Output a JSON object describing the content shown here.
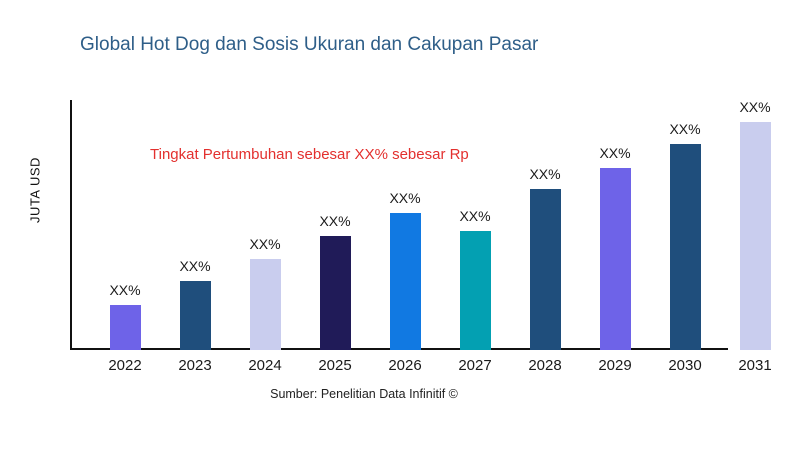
{
  "header": {
    "title": "Global Hot Dog dan Sosis Ukuran dan Cakupan Pasar",
    "title_color": "#2e5e88"
  },
  "annotation": {
    "text": "Tingkat Pertumbuhan sebesar XX% sebesar Rp",
    "color": "#e3302e"
  },
  "source": {
    "text": "Sumber: Penelitian Data Infinitif ©"
  },
  "chart_data": {
    "type": "bar",
    "title": "Global Hot Dog dan Sosis Ukuran dan Cakupan Pasar",
    "xlabel": "",
    "ylabel": "JUTA USD",
    "categories": [
      "2022",
      "2023",
      "2024",
      "2025",
      "2026",
      "2027",
      "2028",
      "2029",
      "2030",
      "2031"
    ],
    "bar_value_labels": [
      "XX%",
      "XX%",
      "XX%",
      "XX%",
      "XX%",
      "XX%",
      "XX%",
      "XX%",
      "XX%",
      "XX%"
    ],
    "relative_heights": [
      45,
      69,
      91,
      114,
      137,
      119,
      161,
      182,
      206,
      228
    ],
    "bar_colors": [
      "#6e63e8",
      "#1f4e7c",
      "#c9cdee",
      "#201b58",
      "#1179e2",
      "#03a0b2",
      "#1f4e7c",
      "#6e63e8",
      "#1f4e7c",
      "#c9cdee"
    ],
    "axis_color": "#111111",
    "grid": false,
    "legend": false,
    "annotation": "Tingkat Pertumbuhan sebesar XX% sebesar Rp",
    "source": "Sumber: Penelitian Data Infinitif ©",
    "notes": "values shown only as XX% placeholders; relative_heights are bar heights in screen pixels (baseline 350px, taller = larger value); x-axis line ends before the 2031 bar"
  }
}
